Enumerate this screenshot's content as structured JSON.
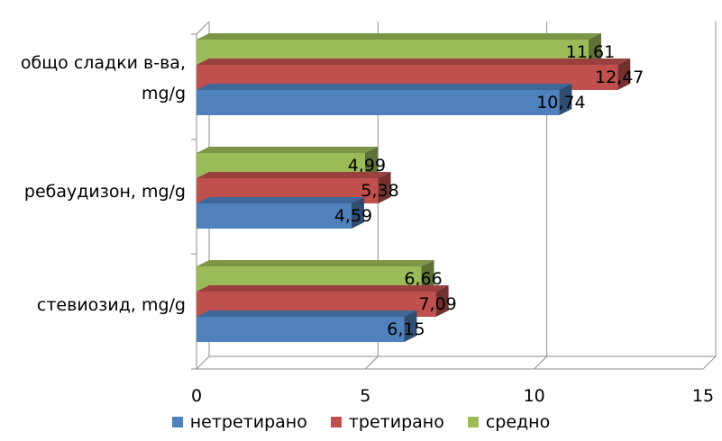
{
  "chart_data": {
    "type": "bar",
    "orientation": "horizontal",
    "style": "3d",
    "categories": [
      "общо сладки в-ва, mg/g",
      "ребаудизон, mg/g",
      "стевиозид, mg/g"
    ],
    "category_lines": [
      [
        "общо сладки в-ва,",
        "mg/g"
      ],
      [
        "ребаудизон, mg/g"
      ],
      [
        "стевиозид, mg/g"
      ]
    ],
    "series": [
      {
        "name": "нетретирано",
        "color": "#4f81bd",
        "values": [
          10.74,
          4.59,
          6.15
        ],
        "labels": [
          "10,74",
          "4,59",
          "6,15"
        ]
      },
      {
        "name": "третирано",
        "color": "#c0504d",
        "values": [
          12.47,
          5.38,
          7.09
        ],
        "labels": [
          "12,47",
          "5,38",
          "7,09"
        ]
      },
      {
        "name": "средно",
        "color": "#9bbb59",
        "values": [
          11.61,
          4.99,
          6.66
        ],
        "labels": [
          "11,61",
          "4,99",
          "6,66"
        ]
      }
    ],
    "xlim": [
      0,
      15
    ],
    "xticks": [
      "0",
      "5",
      "10",
      "15"
    ],
    "grid": true,
    "legend": "bottom"
  }
}
